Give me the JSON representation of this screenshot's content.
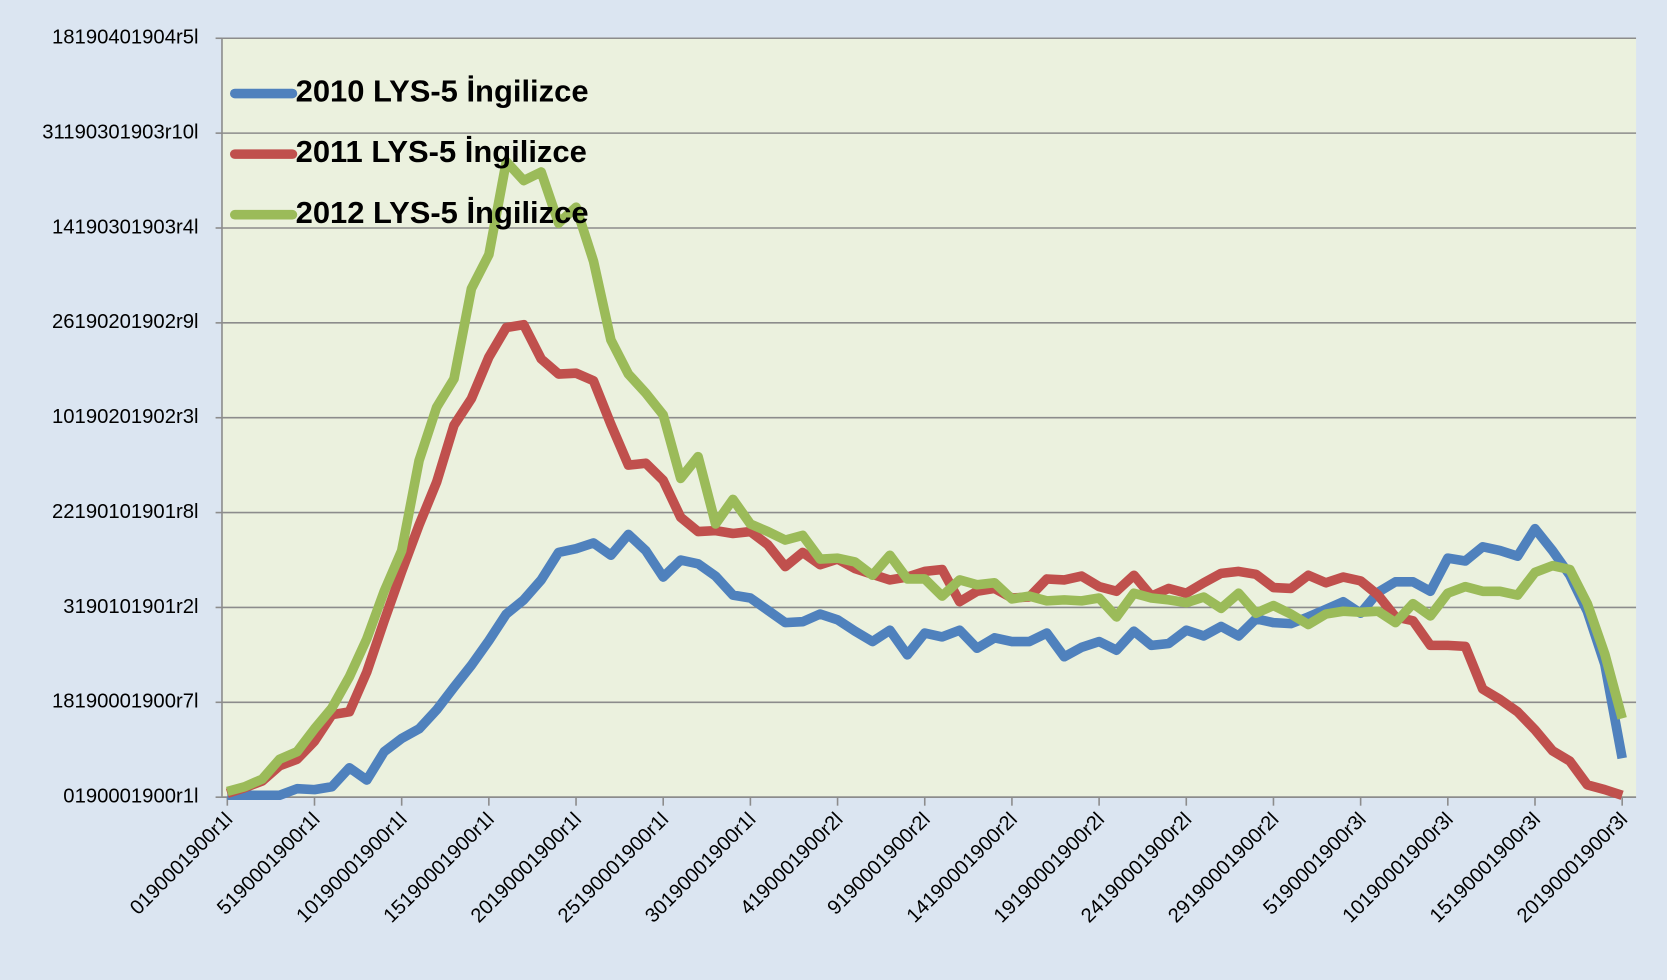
{
  "chart_data": {
    "type": "line",
    "categories": [
      "0190001900r1l",
      null,
      null,
      null,
      null,
      "5190001900r1l",
      null,
      null,
      null,
      null,
      "10190001900r1l",
      null,
      null,
      null,
      null,
      "15190001900r1l",
      null,
      null,
      null,
      null,
      "20190001900r1l",
      null,
      null,
      null,
      null,
      "25190001900r1l",
      null,
      null,
      null,
      null,
      "30190001900r1l",
      null,
      null,
      null,
      null,
      "4190001900r2l",
      null,
      null,
      null,
      null,
      "9190001900r2l",
      null,
      null,
      null,
      null,
      "14190001900r2l",
      null,
      null,
      null,
      null,
      "19190001900r2l",
      null,
      null,
      null,
      null,
      "24190001900r2l",
      null,
      null,
      null,
      null,
      "29190001900r2l",
      null,
      null,
      null,
      null,
      "5190001900r3l",
      null,
      null,
      null,
      null,
      "10190001900r3l",
      null,
      null,
      null,
      null,
      "15190001900r3l",
      null,
      null,
      null,
      null,
      "20190001900r3l"
    ],
    "series": [
      {
        "name": "2010 LYS-5 İngilizce",
        "color": "#4f81bd",
        "values": [
          0.02,
          0.02,
          0.02,
          0.02,
          0.09,
          0.08,
          0.11,
          0.31,
          0.18,
          0.48,
          0.62,
          0.72,
          0.92,
          1.16,
          1.39,
          1.65,
          1.93,
          2.08,
          2.29,
          2.58,
          2.62,
          2.68,
          2.55,
          2.77,
          2.6,
          2.32,
          2.5,
          2.46,
          2.33,
          2.13,
          2.1,
          1.97,
          1.84,
          1.85,
          1.93,
          1.87,
          1.75,
          1.64,
          1.76,
          1.5,
          1.73,
          1.69,
          1.76,
          1.57,
          1.68,
          1.64,
          1.64,
          1.73,
          1.48,
          1.58,
          1.64,
          1.55,
          1.75,
          1.6,
          1.62,
          1.76,
          1.7,
          1.8,
          1.7,
          1.88,
          1.84,
          1.83,
          1.9,
          1.98,
          2.06,
          1.94,
          2.16,
          2.27,
          2.27,
          2.17,
          2.52,
          2.49,
          2.64,
          2.6,
          2.54,
          2.83,
          2.6,
          2.34,
          1.96,
          1.4,
          0.41
        ]
      },
      {
        "name": "2011 LYS-5 İngilizce",
        "color": "#c0504d",
        "values": [
          0.04,
          0.1,
          0.17,
          0.33,
          0.4,
          0.59,
          0.87,
          0.9,
          1.32,
          1.86,
          2.38,
          2.87,
          3.32,
          3.92,
          4.2,
          4.64,
          4.95,
          4.98,
          4.62,
          4.46,
          4.47,
          4.39,
          3.93,
          3.5,
          3.52,
          3.34,
          2.95,
          2.8,
          2.81,
          2.78,
          2.8,
          2.66,
          2.43,
          2.58,
          2.45,
          2.51,
          2.41,
          2.35,
          2.29,
          2.32,
          2.38,
          2.4,
          2.06,
          2.17,
          2.2,
          2.1,
          2.11,
          2.3,
          2.29,
          2.33,
          2.22,
          2.17,
          2.34,
          2.12,
          2.2,
          2.15,
          2.26,
          2.36,
          2.38,
          2.35,
          2.21,
          2.2,
          2.34,
          2.26,
          2.32,
          2.28,
          2.13,
          1.9,
          1.86,
          1.6,
          1.6,
          1.59,
          1.14,
          1.03,
          0.9,
          0.71,
          0.49,
          0.38,
          0.13,
          0.08,
          0.02
        ]
      },
      {
        "name": "2012 LYS-5 İngilizce",
        "color": "#9bbb59",
        "values": [
          0.06,
          0.11,
          0.19,
          0.4,
          0.48,
          0.72,
          0.94,
          1.27,
          1.67,
          2.17,
          2.6,
          3.55,
          4.11,
          4.41,
          5.36,
          5.72,
          6.7,
          6.5,
          6.59,
          6.05,
          6.22,
          5.65,
          4.82,
          4.46,
          4.26,
          4.03,
          3.36,
          3.59,
          2.88,
          3.14,
          2.88,
          2.8,
          2.71,
          2.76,
          2.51,
          2.52,
          2.48,
          2.34,
          2.55,
          2.3,
          2.3,
          2.12,
          2.29,
          2.24,
          2.26,
          2.09,
          2.12,
          2.07,
          2.08,
          2.07,
          2.1,
          1.9,
          2.15,
          2.1,
          2.08,
          2.05,
          2.11,
          1.99,
          2.15,
          1.94,
          2.02,
          1.93,
          1.82,
          1.93,
          1.96,
          1.95,
          1.96,
          1.84,
          2.04,
          1.91,
          2.15,
          2.22,
          2.17,
          2.17,
          2.13,
          2.37,
          2.44,
          2.4,
          2.04,
          1.51,
          0.83
        ]
      }
    ],
    "ylim": [
      0,
      8
    ],
    "yticks": [
      {
        "value": 0,
        "label": "0190001900r1l"
      },
      {
        "value": 1,
        "label": "18190001900r7l"
      },
      {
        "value": 2,
        "label": "3190101901r2l"
      },
      {
        "value": 3,
        "label": "22190101901r8l"
      },
      {
        "value": 4,
        "label": "10190201902r3l"
      },
      {
        "value": 5,
        "label": "26190201902r9l"
      },
      {
        "value": 6,
        "label": "14190301903r4l"
      },
      {
        "value": 7,
        "label": "31190301903r10l"
      },
      {
        "value": 8,
        "label": "18190401904r5l"
      }
    ],
    "grid": true,
    "legend": "upper left"
  }
}
